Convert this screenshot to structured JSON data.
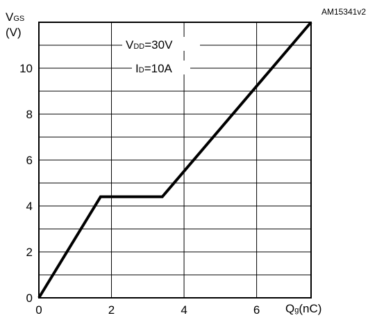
{
  "chart_data": {
    "type": "line",
    "reference_code": "AM15341v2",
    "y_axis": {
      "symbol": "V",
      "subscript": "GS",
      "unit": "(V)"
    },
    "x_axis": {
      "symbol": "Q",
      "subscript": "g",
      "unit": "(nC)"
    },
    "xlim": [
      0,
      7.5
    ],
    "ylim": [
      0,
      12
    ],
    "x_ticks": [
      "0",
      "2",
      "4",
      "6"
    ],
    "x_tick_values": [
      0,
      2,
      4,
      6
    ],
    "y_ticks": [
      "0",
      "2",
      "4",
      "6",
      "8",
      "10"
    ],
    "y_tick_values": [
      0,
      2,
      4,
      6,
      8,
      10
    ],
    "x_gridlines": [
      2,
      4,
      6
    ],
    "y_gridlines": [
      1,
      2,
      3,
      4,
      5,
      6,
      7,
      8,
      9,
      10,
      11
    ],
    "grid": true,
    "annotations": [
      {
        "symbol": "V",
        "subscript": "DD",
        "text": "=30V"
      },
      {
        "symbol": "I",
        "subscript": "D",
        "text": "=10A"
      }
    ],
    "series": [
      {
        "x": [
          0,
          1.7,
          3.4,
          7.5
        ],
        "y": [
          0,
          4.4,
          4.4,
          12
        ]
      }
    ]
  }
}
